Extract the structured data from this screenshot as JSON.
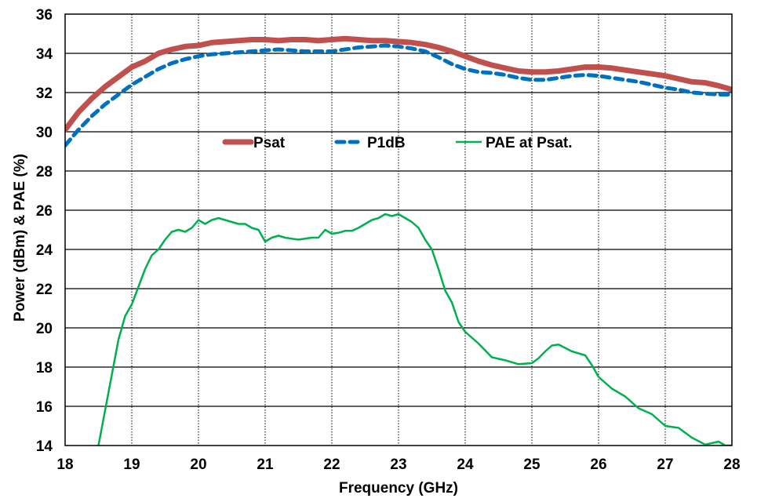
{
  "chart_data": {
    "type": "line",
    "title": "",
    "xlabel": "Frequency (GHz)",
    "ylabel": "Power (dBm) & PAE (%)",
    "xlim": [
      18,
      28
    ],
    "ylim": [
      14,
      36
    ],
    "xticks": [
      18,
      19,
      20,
      21,
      22,
      23,
      24,
      25,
      26,
      27,
      28
    ],
    "yticks": [
      14,
      16,
      18,
      20,
      22,
      24,
      26,
      28,
      30,
      32,
      34,
      36
    ],
    "grid": {
      "x": "dotted",
      "y": "solid"
    },
    "legend": {
      "position": "inside-middle",
      "entries": [
        "Psat",
        "P1dB",
        "PAE at Psat."
      ]
    },
    "series": [
      {
        "name": "Psat",
        "color": "#C0504D",
        "style": "solid-thick",
        "x": [
          18.0,
          18.2,
          18.4,
          18.6,
          18.8,
          19.0,
          19.2,
          19.4,
          19.6,
          19.8,
          20.0,
          20.2,
          20.4,
          20.6,
          20.8,
          21.0,
          21.2,
          21.4,
          21.6,
          21.8,
          22.0,
          22.2,
          22.4,
          22.6,
          22.8,
          23.0,
          23.2,
          23.4,
          23.6,
          23.8,
          24.0,
          24.2,
          24.4,
          24.6,
          24.8,
          25.0,
          25.2,
          25.4,
          25.6,
          25.8,
          26.0,
          26.2,
          26.4,
          26.6,
          26.8,
          27.0,
          27.2,
          27.4,
          27.6,
          27.8,
          28.0
        ],
        "y": [
          30.1,
          31.0,
          31.7,
          32.3,
          32.8,
          33.3,
          33.6,
          34.0,
          34.2,
          34.35,
          34.4,
          34.55,
          34.6,
          34.65,
          34.7,
          34.7,
          34.65,
          34.7,
          34.7,
          34.65,
          34.7,
          34.75,
          34.7,
          34.65,
          34.65,
          34.6,
          34.55,
          34.45,
          34.3,
          34.1,
          33.85,
          33.6,
          33.4,
          33.25,
          33.1,
          33.05,
          33.05,
          33.1,
          33.2,
          33.3,
          33.3,
          33.25,
          33.15,
          33.05,
          32.95,
          32.85,
          32.7,
          32.55,
          32.5,
          32.35,
          32.15
        ]
      },
      {
        "name": "P1dB",
        "color": "#0070C0",
        "style": "dashed",
        "x": [
          18.0,
          18.2,
          18.4,
          18.6,
          18.8,
          19.0,
          19.2,
          19.4,
          19.6,
          19.8,
          20.0,
          20.2,
          20.4,
          20.6,
          20.8,
          21.0,
          21.2,
          21.4,
          21.6,
          21.8,
          22.0,
          22.2,
          22.4,
          22.6,
          22.8,
          23.0,
          23.2,
          23.4,
          23.6,
          23.8,
          24.0,
          24.2,
          24.4,
          24.6,
          24.8,
          25.0,
          25.2,
          25.4,
          25.6,
          25.8,
          26.0,
          26.2,
          26.4,
          26.6,
          26.8,
          27.0,
          27.2,
          27.4,
          27.6,
          27.8,
          28.0
        ],
        "y": [
          29.3,
          30.1,
          30.8,
          31.4,
          31.9,
          32.4,
          32.8,
          33.2,
          33.5,
          33.7,
          33.85,
          33.95,
          34.0,
          34.05,
          34.1,
          34.15,
          34.2,
          34.15,
          34.1,
          34.1,
          34.1,
          34.2,
          34.3,
          34.35,
          34.4,
          34.35,
          34.25,
          34.1,
          33.8,
          33.45,
          33.2,
          33.05,
          33.0,
          32.9,
          32.75,
          32.65,
          32.65,
          32.75,
          32.85,
          32.9,
          32.85,
          32.75,
          32.65,
          32.55,
          32.4,
          32.25,
          32.15,
          32.0,
          31.95,
          31.9,
          31.9
        ]
      },
      {
        "name": "PAE at Psat.",
        "color": "#00B050",
        "style": "solid-thin",
        "x": [
          18.5,
          18.6,
          18.7,
          18.8,
          18.9,
          19.0,
          19.1,
          19.2,
          19.3,
          19.4,
          19.5,
          19.6,
          19.7,
          19.8,
          19.9,
          20.0,
          20.1,
          20.2,
          20.3,
          20.4,
          20.5,
          20.6,
          20.7,
          20.8,
          20.9,
          21.0,
          21.1,
          21.2,
          21.3,
          21.4,
          21.5,
          21.6,
          21.7,
          21.8,
          21.9,
          22.0,
          22.1,
          22.2,
          22.3,
          22.4,
          22.5,
          22.6,
          22.7,
          22.8,
          22.9,
          23.0,
          23.1,
          23.2,
          23.3,
          23.4,
          23.5,
          23.6,
          23.7,
          23.8,
          23.9,
          24.0,
          24.2,
          24.4,
          24.6,
          24.8,
          25.0,
          25.1,
          25.2,
          25.3,
          25.4,
          25.6,
          25.8,
          25.9,
          26.0,
          26.2,
          26.4,
          26.6,
          26.8,
          27.0,
          27.2,
          27.4,
          27.6,
          27.8,
          27.9,
          28.0
        ],
        "y": [
          14.0,
          15.8,
          17.6,
          19.4,
          20.6,
          21.2,
          22.1,
          23.0,
          23.7,
          24.0,
          24.5,
          24.9,
          25.0,
          24.9,
          25.1,
          25.5,
          25.3,
          25.5,
          25.6,
          25.5,
          25.4,
          25.3,
          25.3,
          25.1,
          25.0,
          24.4,
          24.6,
          24.7,
          24.6,
          24.55,
          24.5,
          24.55,
          24.6,
          24.6,
          25.0,
          24.8,
          24.85,
          24.95,
          24.95,
          25.1,
          25.3,
          25.5,
          25.6,
          25.8,
          25.7,
          25.8,
          25.6,
          25.4,
          25.1,
          24.5,
          24.0,
          23.0,
          21.9,
          21.3,
          20.3,
          19.8,
          19.2,
          18.5,
          18.35,
          18.15,
          18.2,
          18.45,
          18.8,
          19.1,
          19.15,
          18.8,
          18.6,
          18.1,
          17.5,
          16.9,
          16.5,
          15.9,
          15.6,
          15.0,
          14.9,
          14.4,
          14.05,
          14.2,
          14.0,
          14.0
        ]
      }
    ]
  },
  "labels": {
    "xlabel": "Frequency (GHz)",
    "ylabel": "Power (dBm) & PAE (%)",
    "legend": [
      "Psat",
      "P1dB",
      "PAE at Psat."
    ]
  }
}
